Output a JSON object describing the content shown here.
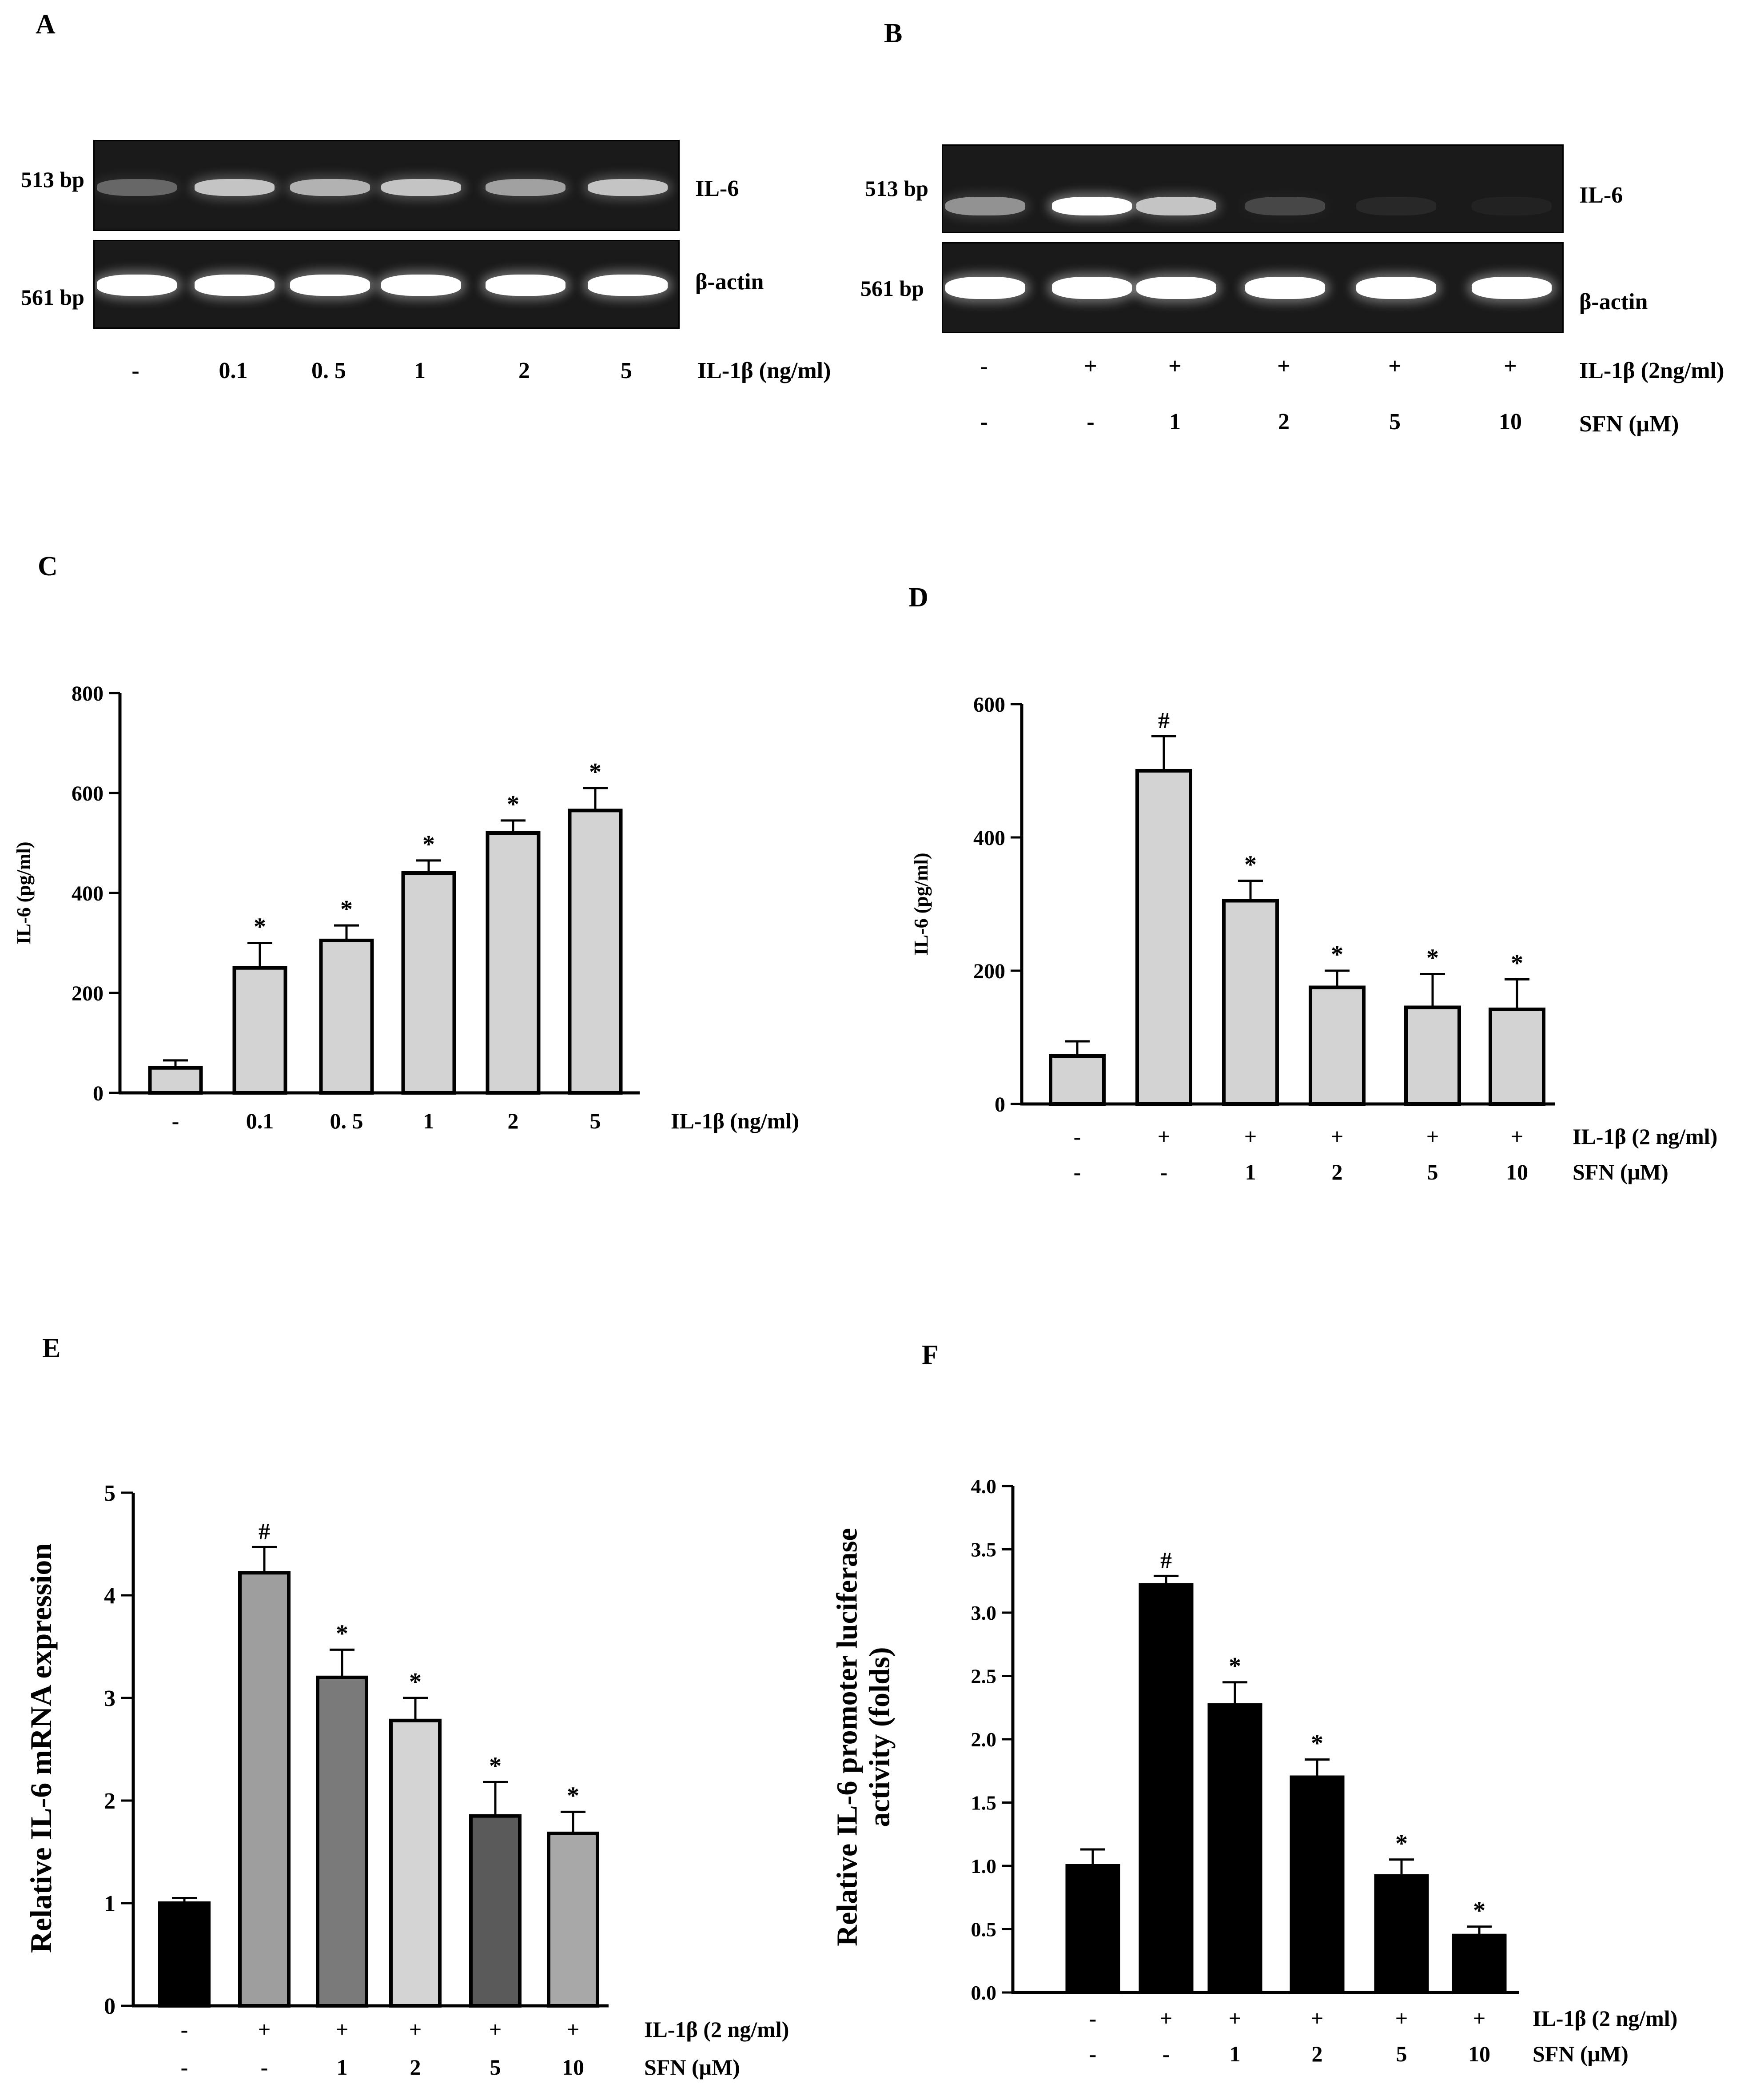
{
  "panels": {
    "A": {
      "letter": "A",
      "band_labels": [
        "513 bp",
        "561 bp"
      ],
      "gene_labels": [
        "IL-6",
        "β-actin"
      ],
      "treatment_label": "IL-1β  (ng/ml)",
      "lanes": [
        "-",
        "0.1",
        "0. 5",
        "1",
        "2",
        "5"
      ],
      "il6_intensity": [
        0.55,
        0.85,
        0.8,
        0.85,
        0.75,
        0.85
      ],
      "actin_intensity": [
        1,
        1,
        1,
        1,
        1,
        1
      ]
    },
    "B": {
      "letter": "B",
      "band_labels": [
        "513 bp",
        "561 bp"
      ],
      "gene_labels": [
        "IL-6",
        "β-actin"
      ],
      "row1_label": "IL-1β  (2ng/ml)",
      "row2_label": "SFN (μM)",
      "row1": [
        "-",
        "+",
        "+",
        "+",
        "+",
        "+"
      ],
      "row2": [
        "-",
        "-",
        "1",
        "2",
        "5",
        "10"
      ],
      "il6_intensity": [
        0.7,
        1.0,
        0.85,
        0.4,
        0.2,
        0.1
      ],
      "actin_intensity": [
        1,
        1,
        1,
        1,
        1,
        1
      ]
    }
  },
  "chart_data": [
    {
      "panel": "C",
      "type": "bar",
      "ylabel": "IL-6 (pg/ml)",
      "ylim": [
        0,
        800
      ],
      "yticks": [
        0,
        200,
        400,
        600,
        800
      ],
      "categories": [
        "-",
        "0.1",
        "0. 5",
        "1",
        "2",
        "5"
      ],
      "values": [
        50,
        250,
        305,
        440,
        520,
        565
      ],
      "errors": [
        15,
        50,
        30,
        25,
        25,
        45
      ],
      "markers": [
        "",
        "*",
        "*",
        "*",
        "*",
        "*"
      ],
      "bar_colors": [
        "#d3d3d3",
        "#d3d3d3",
        "#d3d3d3",
        "#d3d3d3",
        "#d3d3d3",
        "#d3d3d3"
      ],
      "row_labels": [
        "IL-1β  (ng/ml)"
      ],
      "rows": [
        [
          "-",
          "0.1",
          "0. 5",
          "1",
          "2",
          "5"
        ]
      ]
    },
    {
      "panel": "D",
      "type": "bar",
      "ylabel": "IL-6 (pg/ml)",
      "ylim": [
        0,
        600
      ],
      "yticks": [
        0,
        200,
        400,
        600
      ],
      "categories": [
        "-/-",
        "+/-",
        "+/1",
        "+/2",
        "+/5",
        "+/10"
      ],
      "values": [
        72,
        500,
        305,
        175,
        145,
        142
      ],
      "errors": [
        22,
        52,
        30,
        25,
        50,
        45
      ],
      "markers": [
        "",
        "#",
        "*",
        "*",
        "*",
        "*"
      ],
      "bar_colors": [
        "#d3d3d3",
        "#d3d3d3",
        "#d3d3d3",
        "#d3d3d3",
        "#d3d3d3",
        "#d3d3d3"
      ],
      "row_labels": [
        "IL-1β  (2 ng/ml)",
        "SFN (μM)"
      ],
      "rows": [
        [
          "-",
          "+",
          "+",
          "+",
          "+",
          "+"
        ],
        [
          "-",
          "-",
          "1",
          "2",
          "5",
          "10"
        ]
      ]
    },
    {
      "panel": "E",
      "type": "bar",
      "ylabel": "Relative IL-6 mRNA expression",
      "ylim": [
        0,
        5
      ],
      "yticks": [
        0,
        1,
        2,
        3,
        4,
        5
      ],
      "categories": [
        "-/-",
        "+/-",
        "+/1",
        "+/2",
        "+/5",
        "+/10"
      ],
      "values": [
        1.0,
        4.22,
        3.2,
        2.78,
        1.85,
        1.68
      ],
      "errors": [
        0.05,
        0.25,
        0.27,
        0.22,
        0.33,
        0.21
      ],
      "markers": [
        "",
        "#",
        "*",
        "*",
        "*",
        "*"
      ],
      "bar_colors": [
        "#000000",
        "#9e9e9e",
        "#7a7a7a",
        "#d4d4d4",
        "#5a5a5a",
        "#a8a8a8"
      ],
      "row_labels": [
        "IL-1β  (2 ng/ml)",
        "SFN (μM)"
      ],
      "rows": [
        [
          "-",
          "+",
          "+",
          "+",
          "+",
          "+"
        ],
        [
          "-",
          "-",
          "1",
          "2",
          "5",
          "10"
        ]
      ]
    },
    {
      "panel": "F",
      "type": "bar",
      "ylabel": "Relative IL-6 promoter luciferase activity (folds)",
      "ylabel_lines": [
        "Relative IL-6 promoter luciferase",
        "activity (folds)"
      ],
      "ylim": [
        0,
        4.0
      ],
      "yticks": [
        "0.0",
        "0.5",
        "1.0",
        "1.5",
        "2.0",
        "2.5",
        "3.0",
        "3.5",
        "4.0"
      ],
      "categories": [
        "-/-",
        "+/-",
        "+/1",
        "+/2",
        "+/5",
        "+/10"
      ],
      "values": [
        1.0,
        3.22,
        2.27,
        1.7,
        0.92,
        0.45
      ],
      "errors": [
        0.13,
        0.07,
        0.18,
        0.14,
        0.13,
        0.07
      ],
      "markers": [
        "",
        "#",
        "*",
        "*",
        "*",
        "*"
      ],
      "bar_colors": [
        "#000000",
        "#000000",
        "#000000",
        "#000000",
        "#000000",
        "#000000"
      ],
      "row_labels": [
        "IL-1β  (2 ng/ml)",
        "SFN (μM)"
      ],
      "rows": [
        [
          "-",
          "+",
          "+",
          "+",
          "+",
          "+"
        ],
        [
          "-",
          "-",
          "1",
          "2",
          "5",
          "10"
        ]
      ]
    }
  ]
}
